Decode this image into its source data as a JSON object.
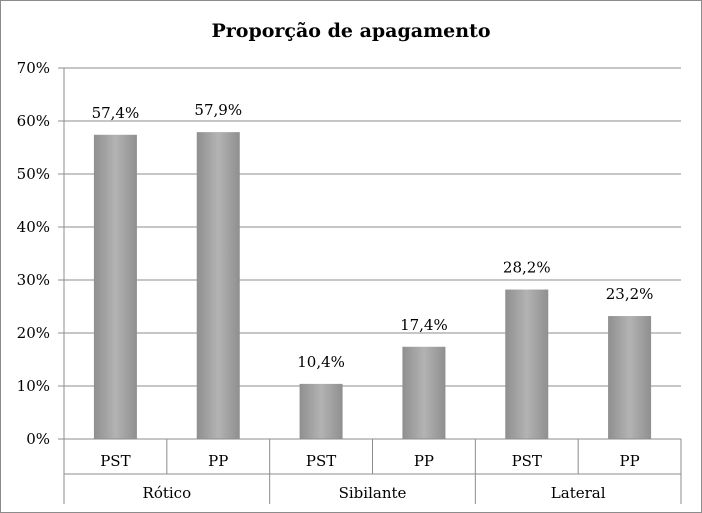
{
  "chart_data": {
    "type": "bar",
    "title": "Proporção de apagamento",
    "groups": [
      {
        "name": "Rótico",
        "categories": [
          "PST",
          "PP"
        ],
        "values": [
          57.4,
          57.9
        ],
        "labels": [
          "57,4%",
          "57,9%"
        ]
      },
      {
        "name": "Sibilante",
        "categories": [
          "PST",
          "PP"
        ],
        "values": [
          10.4,
          17.4
        ],
        "labels": [
          "10,4%",
          "17,4%"
        ]
      },
      {
        "name": "Lateral",
        "categories": [
          "PST",
          "PP"
        ],
        "values": [
          28.2,
          23.2
        ],
        "labels": [
          "28,2%",
          "23,2%"
        ]
      }
    ],
    "ylim": [
      0,
      70
    ],
    "yticks": [
      0,
      10,
      20,
      30,
      40,
      50,
      60,
      70
    ],
    "ytick_labels": [
      "0%",
      "10%",
      "20%",
      "30%",
      "40%",
      "50%",
      "60%",
      "70%"
    ],
    "grid": true,
    "legend": "none",
    "bar_color": "#a6a6a6",
    "grid_color": "#8c8c8c"
  }
}
